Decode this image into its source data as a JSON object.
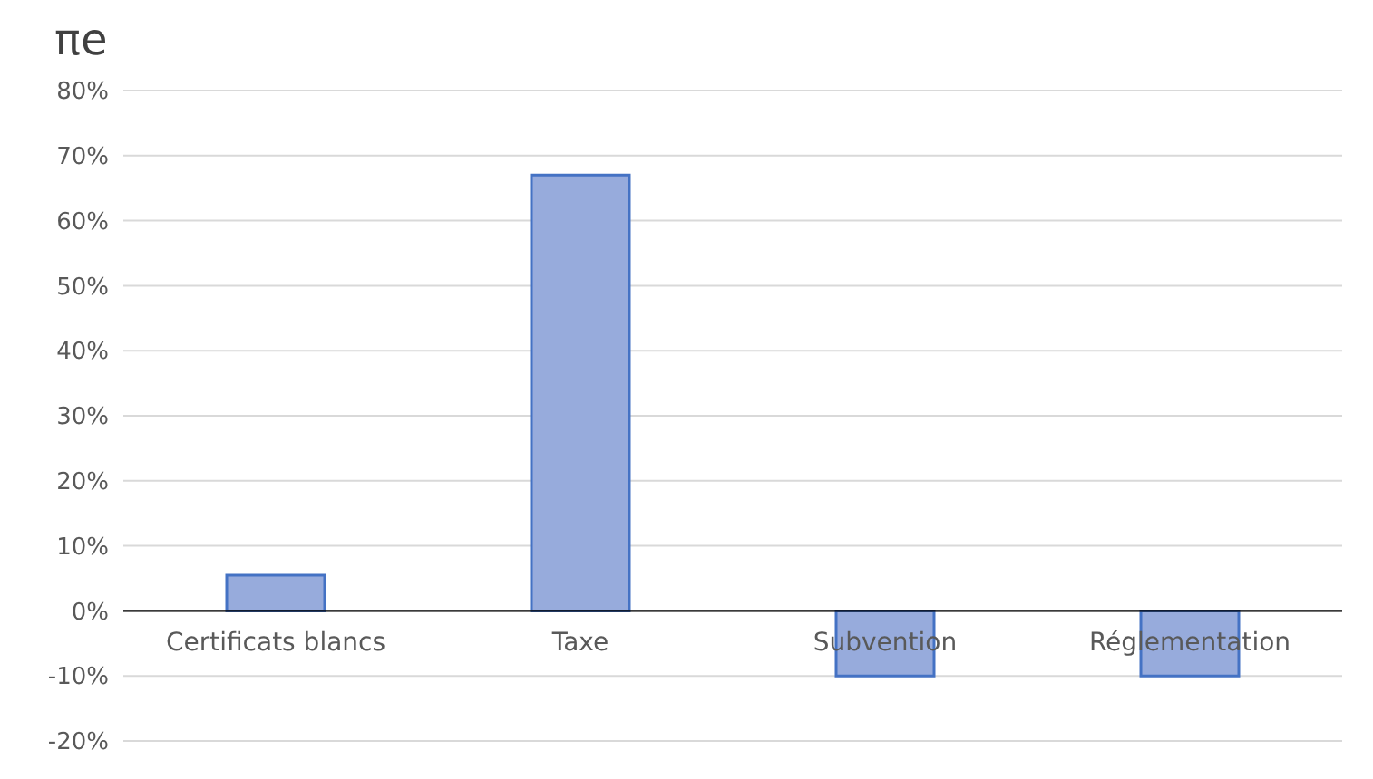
{
  "chart_data": {
    "type": "bar",
    "title": "πe",
    "categories": [
      "Certificats blancs",
      "Taxe",
      "Subvention",
      "Réglementation"
    ],
    "values": [
      5.5,
      67,
      -10,
      -10
    ],
    "color": "#97abdc",
    "ylim": [
      -20,
      80
    ],
    "yticks": [
      {
        "value": -20,
        "label": "-20%"
      },
      {
        "value": -10,
        "label": "-10%"
      },
      {
        "value": 0,
        "label": "0%"
      },
      {
        "value": 10,
        "label": "10%"
      },
      {
        "value": 20,
        "label": "20%"
      },
      {
        "value": 30,
        "label": "30%"
      },
      {
        "value": 40,
        "label": "40%"
      },
      {
        "value": 50,
        "label": "50%"
      },
      {
        "value": 60,
        "label": "60%"
      },
      {
        "value": 70,
        "label": "70%"
      },
      {
        "value": 80,
        "label": "80%"
      }
    ],
    "grid": "y",
    "legend": false
  }
}
